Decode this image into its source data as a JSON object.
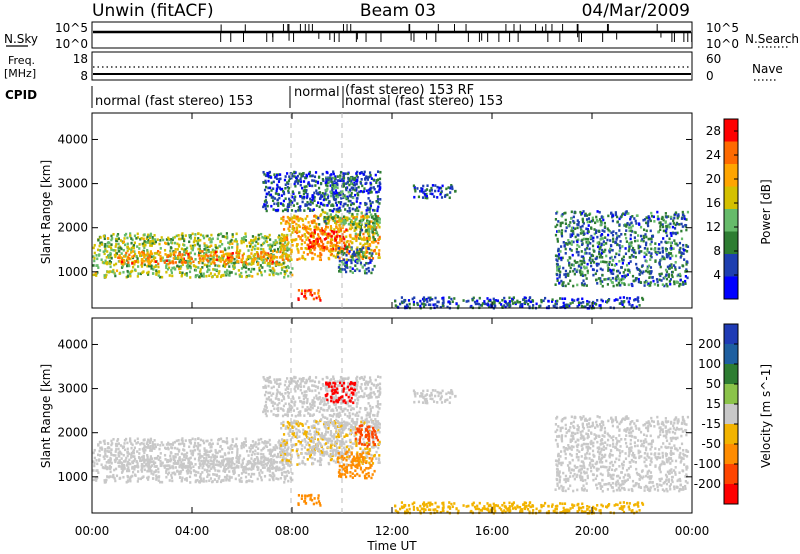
{
  "header": {
    "station": "Unwin (fitACF)",
    "beam": "Beam 03",
    "date": "04/Mar/2009"
  },
  "panels": {
    "nsky_label": "N.Sky",
    "nsearch_label": "N.Search",
    "nsky_ticks": [
      "10^5",
      "10^0"
    ],
    "freq_label_1": "Freq.",
    "freq_label_2": "[MHz]",
    "freq_ticks": [
      "18",
      "8"
    ],
    "nave_label": "Nave",
    "nave_ticks": [
      "60",
      "0"
    ],
    "cpid_label": "CPID",
    "cpid_segments": [
      "normal (fast stereo) 153",
      "normal",
      "(fast stereo) 153 RF",
      "normal (fast stereo) 153"
    ]
  },
  "colors": {
    "power": [
      "#0000ff",
      "#1e3fb0",
      "#2e7d32",
      "#66bb6a",
      "#d4c000",
      "#ffa500",
      "#ff6a00",
      "#ff0000"
    ],
    "velocity": [
      "#1f3bb5",
      "#1e5fa0",
      "#2e7d32",
      "#8bc34a",
      "#c8c8c8",
      "#f2b300",
      "#ff8c00",
      "#ff4500",
      "#ff0000"
    ]
  },
  "chart_data": [
    {
      "type": "heatmap",
      "title": "Power",
      "xlabel": "Time UT",
      "ylabel": "Slant Range [km]",
      "xlim": [
        "00:00",
        "24:00"
      ],
      "ylim": [
        180,
        4600
      ],
      "x_ticks": [
        "00:00",
        "04:00",
        "08:00",
        "12:00",
        "16:00",
        "20:00",
        "00:00"
      ],
      "y_ticks": [
        1000,
        2000,
        3000,
        4000
      ],
      "colorbar_label": "Power [dB]",
      "colorbar_ticks": [
        4,
        8,
        12,
        16,
        20,
        24,
        28
      ],
      "colorbar_range": [
        0,
        30
      ]
    },
    {
      "type": "heatmap",
      "title": "Velocity",
      "xlabel": "Time UT",
      "ylabel": "Slant Range [km]",
      "xlim": [
        "00:00",
        "24:00"
      ],
      "ylim": [
        180,
        4600
      ],
      "x_ticks": [
        "00:00",
        "04:00",
        "08:00",
        "12:00",
        "16:00",
        "20:00",
        "00:00"
      ],
      "y_ticks": [
        1000,
        2000,
        3000,
        4000
      ],
      "colorbar_label": "Velocity [m s^-1]",
      "colorbar_ticks": [
        200,
        100,
        50,
        15,
        -15,
        -50,
        -100,
        -200
      ]
    }
  ],
  "echo_regions": [
    {
      "t0": 0.0,
      "t1": 8.0,
      "r0": 900,
      "r1": 1900,
      "power": 14,
      "vel": 0
    },
    {
      "t0": 1.0,
      "t1": 7.5,
      "r0": 1200,
      "r1": 1500,
      "power": 22,
      "vel": 0
    },
    {
      "t0": 7.5,
      "t1": 11.5,
      "r0": 1300,
      "r1": 2300,
      "power": 20,
      "vel": -10
    },
    {
      "t0": 8.6,
      "t1": 10.2,
      "r0": 1500,
      "r1": 2000,
      "power": 26,
      "vel": -5
    },
    {
      "t0": 9.0,
      "t1": 11.5,
      "r0": 2100,
      "r1": 2400,
      "power": 12,
      "vel": 0
    },
    {
      "t0": 6.8,
      "t1": 11.5,
      "r0": 2400,
      "r1": 3300,
      "power": 6,
      "vel": 0
    },
    {
      "t0": 9.3,
      "t1": 10.5,
      "r0": 2700,
      "r1": 3200,
      "power": 10,
      "vel": -200
    },
    {
      "t0": 10.5,
      "t1": 11.4,
      "r0": 1700,
      "r1": 2200,
      "power": 12,
      "vel": -150
    },
    {
      "t0": 9.8,
      "t1": 11.3,
      "r0": 1000,
      "r1": 1600,
      "power": 8,
      "vel": -70
    },
    {
      "t0": 8.2,
      "t1": 9.1,
      "r0": 380,
      "r1": 620,
      "power": 26,
      "vel": -70
    },
    {
      "t0": 12.8,
      "t1": 14.5,
      "r0": 2700,
      "r1": 3000,
      "power": 6,
      "vel": 0
    },
    {
      "t0": 18.5,
      "t1": 23.8,
      "r0": 700,
      "r1": 2400,
      "power": 8,
      "vel": 0
    },
    {
      "t0": 12.0,
      "t1": 22.0,
      "r0": 200,
      "r1": 450,
      "power": 6,
      "vel": -30
    }
  ],
  "axes": {
    "xlabel": "Time UT"
  }
}
